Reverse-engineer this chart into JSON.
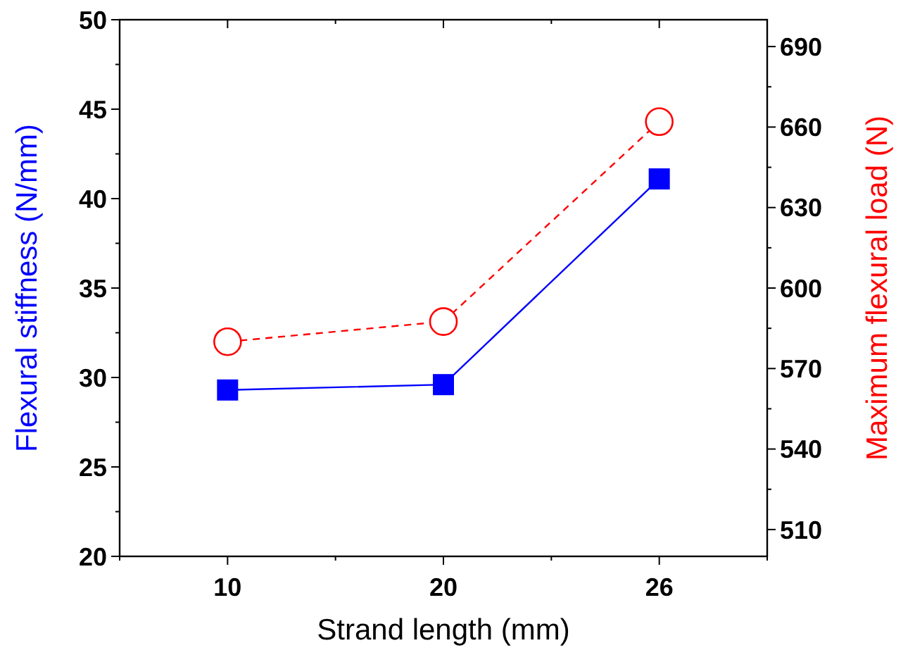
{
  "chart_data": {
    "type": "line",
    "xlabel": "Strand length (mm)",
    "ylabel": "Flexural stiffness (N/mm)",
    "y2label": "Maximum flexural load (N)",
    "categories": [
      "10",
      "20",
      "26"
    ],
    "series": [
      {
        "color": "#0000ff",
        "values": [
          29.3,
          29.6,
          41.1
        ],
        "marker": "square",
        "line_style": "solid"
      },
      {
        "color": "#ff0000",
        "values": [
          580,
          587.5,
          662
        ],
        "axis": "y2",
        "marker": "circle",
        "line_style": "dashed"
      }
    ],
    "ylim": [
      20,
      50
    ],
    "yticks": [
      20,
      25,
      30,
      35,
      40,
      45,
      50
    ],
    "y2lim": [
      500,
      700
    ],
    "y2ticks": [
      510,
      540,
      570,
      600,
      630,
      660,
      690
    ],
    "grid": false
  }
}
